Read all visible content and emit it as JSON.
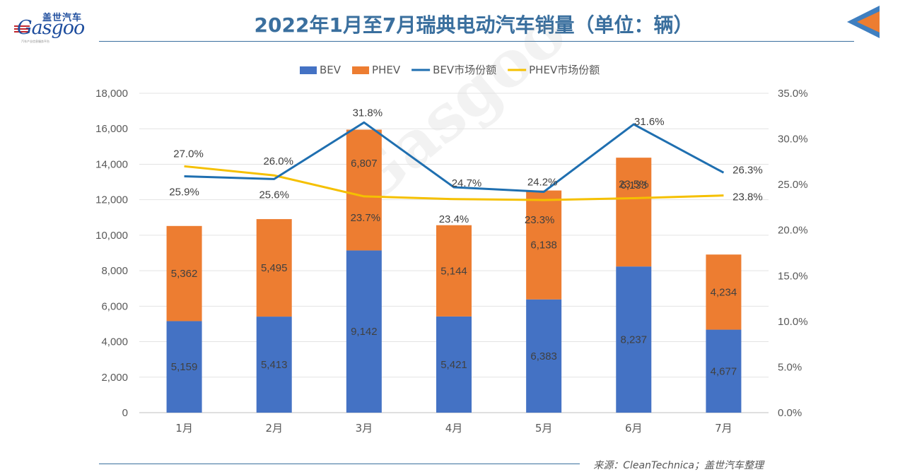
{
  "header": {
    "title": "2022年1月至7月瑞典电动汽车销量（单位：辆）",
    "logo_cn": "盖世汽车",
    "logo_en": "Gasgoo",
    "logo_sub": "汽车产业信息服务平台"
  },
  "footer": {
    "source": "来源：CleanTechnica；盖世汽车整理"
  },
  "colors": {
    "bev": "#4472c4",
    "phev": "#ed7d31",
    "bev_line": "#1f6fb0",
    "phev_line": "#f5c000",
    "accent": "#3a6f9e"
  },
  "chart_data": {
    "type": "bar",
    "stacked": true,
    "categories": [
      "1月",
      "2月",
      "3月",
      "4月",
      "5月",
      "6月",
      "7月"
    ],
    "series": [
      {
        "name": "BEV",
        "type": "bar",
        "axis": "left",
        "values": [
          5159,
          5413,
          9142,
          5421,
          6383,
          8237,
          4677
        ],
        "labels": [
          "5,159",
          "5,413",
          "9,142",
          "5,421",
          "6,383",
          "8,237",
          "4,677"
        ]
      },
      {
        "name": "PHEV",
        "type": "bar",
        "axis": "left",
        "values": [
          5362,
          5495,
          6807,
          5144,
          6138,
          6133,
          4234
        ],
        "labels": [
          "5,362",
          "5,495",
          "6,807",
          "5,144",
          "6,138",
          "6,133",
          "4,234"
        ]
      },
      {
        "name": "BEV市场份额",
        "type": "line",
        "axis": "right",
        "values": [
          25.9,
          25.6,
          31.8,
          24.7,
          24.2,
          31.6,
          26.3
        ],
        "labels": [
          "25.9%",
          "25.6%",
          "31.8%",
          "24.7%",
          "24.2%",
          "31.6%",
          "26.3%"
        ]
      },
      {
        "name": "PHEV市场份额",
        "type": "line",
        "axis": "right",
        "values": [
          27.0,
          26.0,
          23.7,
          23.4,
          23.3,
          23.5,
          23.8
        ],
        "labels": [
          "27.0%",
          "26.0%",
          "23.7%",
          "23.4%",
          "23.3%",
          "23.5%",
          "23.8%"
        ]
      }
    ],
    "ylim": [
      0,
      18000
    ],
    "y_ticks": [
      "0",
      "2,000",
      "4,000",
      "6,000",
      "8,000",
      "10,000",
      "12,000",
      "14,000",
      "16,000",
      "18,000"
    ],
    "y2lim": [
      0,
      35
    ],
    "y2_ticks": [
      "0.0%",
      "5.0%",
      "10.0%",
      "15.0%",
      "20.0%",
      "25.0%",
      "30.0%",
      "35.0%"
    ],
    "legend_position": "top-center",
    "grid": true
  }
}
